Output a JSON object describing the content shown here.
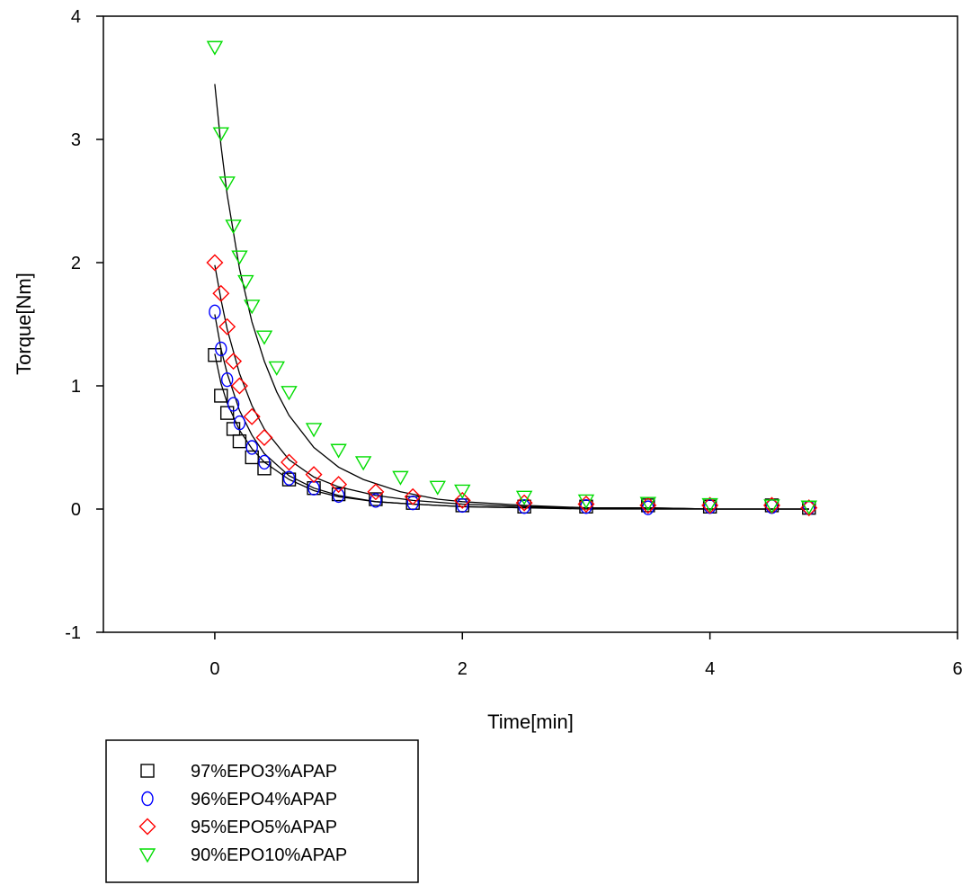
{
  "chart_data": {
    "type": "scatter",
    "title": "",
    "xlabel": "Time[min]",
    "ylabel": "Torque[Nm]",
    "xlim": [
      -0.9,
      6
    ],
    "ylim": [
      -1,
      4
    ],
    "xticks": [
      0,
      2,
      4,
      6
    ],
    "yticks": [
      -1,
      0,
      1,
      2,
      3,
      4
    ],
    "grid": false,
    "legend_position": "bottom-left",
    "series": [
      {
        "name": "97%EPO3%APAP",
        "marker": "square",
        "color": "#000000",
        "x": [
          0.0,
          0.05,
          0.1,
          0.15,
          0.2,
          0.3,
          0.4,
          0.6,
          0.8,
          1.0,
          1.3,
          1.6,
          2.0,
          2.5,
          3.0,
          3.5,
          4.0,
          4.5,
          4.8
        ],
        "y": [
          1.25,
          0.92,
          0.78,
          0.65,
          0.55,
          0.42,
          0.33,
          0.24,
          0.17,
          0.12,
          0.08,
          0.05,
          0.03,
          0.02,
          0.02,
          0.03,
          0.02,
          0.03,
          0.01
        ]
      },
      {
        "name": "96%EPO4%APAP",
        "marker": "circle",
        "color": "#0000ff",
        "x": [
          0.0,
          0.05,
          0.1,
          0.15,
          0.2,
          0.3,
          0.4,
          0.6,
          0.8,
          1.0,
          1.3,
          1.6,
          2.0,
          2.5,
          3.0,
          3.5,
          4.0,
          4.5,
          4.8
        ],
        "y": [
          1.6,
          1.3,
          1.05,
          0.85,
          0.7,
          0.5,
          0.38,
          0.25,
          0.17,
          0.11,
          0.07,
          0.05,
          0.03,
          0.02,
          0.02,
          0.01,
          0.02,
          0.02,
          0.01
        ]
      },
      {
        "name": "95%EPO5%APAP",
        "marker": "diamond",
        "color": "#ff0000",
        "x": [
          0.0,
          0.05,
          0.1,
          0.15,
          0.2,
          0.3,
          0.4,
          0.6,
          0.8,
          1.0,
          1.3,
          1.6,
          2.0,
          2.5,
          3.0,
          3.5,
          4.0,
          4.5,
          4.8
        ],
        "y": [
          2.0,
          1.75,
          1.48,
          1.2,
          1.0,
          0.75,
          0.58,
          0.38,
          0.28,
          0.2,
          0.14,
          0.1,
          0.07,
          0.05,
          0.04,
          0.03,
          0.03,
          0.03,
          0.01
        ]
      },
      {
        "name": "90%EPO10%APAP",
        "marker": "triangle-down",
        "color": "#00dd00",
        "x": [
          0.0,
          0.05,
          0.1,
          0.15,
          0.2,
          0.25,
          0.3,
          0.4,
          0.5,
          0.6,
          0.8,
          1.0,
          1.2,
          1.5,
          1.8,
          2.0,
          2.5,
          3.0,
          3.5,
          4.0,
          4.5,
          4.8
        ],
        "y": [
          3.75,
          3.05,
          2.65,
          2.3,
          2.05,
          1.85,
          1.65,
          1.4,
          1.15,
          0.95,
          0.65,
          0.48,
          0.38,
          0.26,
          0.18,
          0.15,
          0.1,
          0.07,
          0.05,
          0.04,
          0.03,
          0.02
        ]
      }
    ],
    "fit_curves": [
      {
        "x": [
          0.0,
          0.05,
          0.1,
          0.2,
          0.3,
          0.4,
          0.6,
          0.8,
          1.0,
          1.3,
          1.6,
          2.0,
          2.5,
          3.0,
          3.5,
          4.0,
          4.5,
          4.8
        ],
        "y": [
          1.26,
          1.02,
          0.86,
          0.64,
          0.49,
          0.38,
          0.24,
          0.15,
          0.1,
          0.06,
          0.04,
          0.02,
          0.01,
          0.01,
          0.0,
          0.0,
          0.0,
          0.0
        ]
      },
      {
        "x": [
          0.0,
          0.05,
          0.1,
          0.2,
          0.3,
          0.4,
          0.6,
          0.8,
          1.0,
          1.3,
          1.6,
          2.0,
          2.5,
          3.0,
          3.5,
          4.0,
          4.5,
          4.8
        ],
        "y": [
          1.58,
          1.3,
          1.1,
          0.8,
          0.6,
          0.45,
          0.27,
          0.17,
          0.11,
          0.06,
          0.04,
          0.02,
          0.01,
          0.0,
          0.0,
          0.0,
          0.0,
          0.0
        ]
      },
      {
        "x": [
          0.0,
          0.05,
          0.1,
          0.2,
          0.3,
          0.4,
          0.6,
          0.8,
          1.0,
          1.3,
          1.6,
          2.0,
          2.5,
          3.0,
          3.5,
          4.0,
          4.5,
          4.8
        ],
        "y": [
          1.98,
          1.7,
          1.46,
          1.1,
          0.84,
          0.65,
          0.4,
          0.26,
          0.18,
          0.11,
          0.07,
          0.04,
          0.02,
          0.01,
          0.01,
          0.0,
          0.0,
          0.0
        ]
      },
      {
        "x": [
          0.0,
          0.05,
          0.1,
          0.2,
          0.3,
          0.4,
          0.5,
          0.6,
          0.8,
          1.0,
          1.2,
          1.5,
          1.8,
          2.0,
          2.5,
          3.0,
          3.5,
          4.0,
          4.5,
          4.8
        ],
        "y": [
          3.45,
          2.95,
          2.55,
          1.95,
          1.52,
          1.2,
          0.95,
          0.76,
          0.5,
          0.34,
          0.24,
          0.14,
          0.08,
          0.06,
          0.03,
          0.01,
          0.01,
          0.0,
          0.0,
          0.0
        ]
      }
    ]
  }
}
